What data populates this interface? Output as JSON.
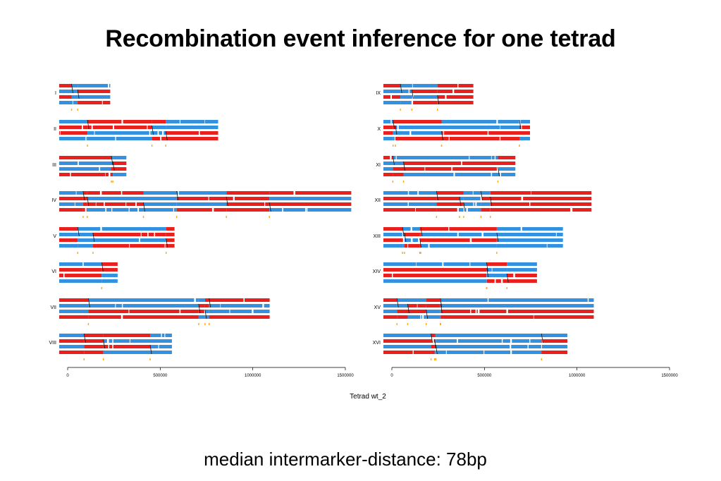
{
  "page": {
    "title": "Recombination event inference for one tetrad",
    "footer": "median intermarker-distance: 78bp"
  },
  "chart_data": {
    "type": "genome-tracks",
    "xlabel": "Tetrad wt_2",
    "xlim": [
      0,
      1500000
    ],
    "x_ticks": [
      "0",
      "500000",
      "1000000",
      "1500000"
    ],
    "colors": {
      "parent_a": "#e8211e",
      "parent_b": "#3491e0",
      "marker": "#f5a623",
      "crossover_line": "#111111"
    },
    "panels": [
      {
        "name": "left",
        "chromosomes": [
          {
            "label": "I",
            "length": 230000
          },
          {
            "label": "II",
            "length": 813000
          },
          {
            "label": "III",
            "length": 317000
          },
          {
            "label": "IV",
            "length": 1532000
          },
          {
            "label": "V",
            "length": 577000
          },
          {
            "label": "VI",
            "length": 270000
          },
          {
            "label": "VII",
            "length": 1091000
          },
          {
            "label": "VIII",
            "length": 563000
          }
        ]
      },
      {
        "name": "right",
        "chromosomes": [
          {
            "label": "IX",
            "length": 440000
          },
          {
            "label": "X",
            "length": 746000
          },
          {
            "label": "XI",
            "length": 667000
          },
          {
            "label": "XII",
            "length": 1078000
          },
          {
            "label": "XIII",
            "length": 924000
          },
          {
            "label": "XIV",
            "length": 784000
          },
          {
            "label": "XV",
            "length": 1091000
          },
          {
            "label": "XVI",
            "length": 948000
          }
        ]
      }
    ]
  }
}
